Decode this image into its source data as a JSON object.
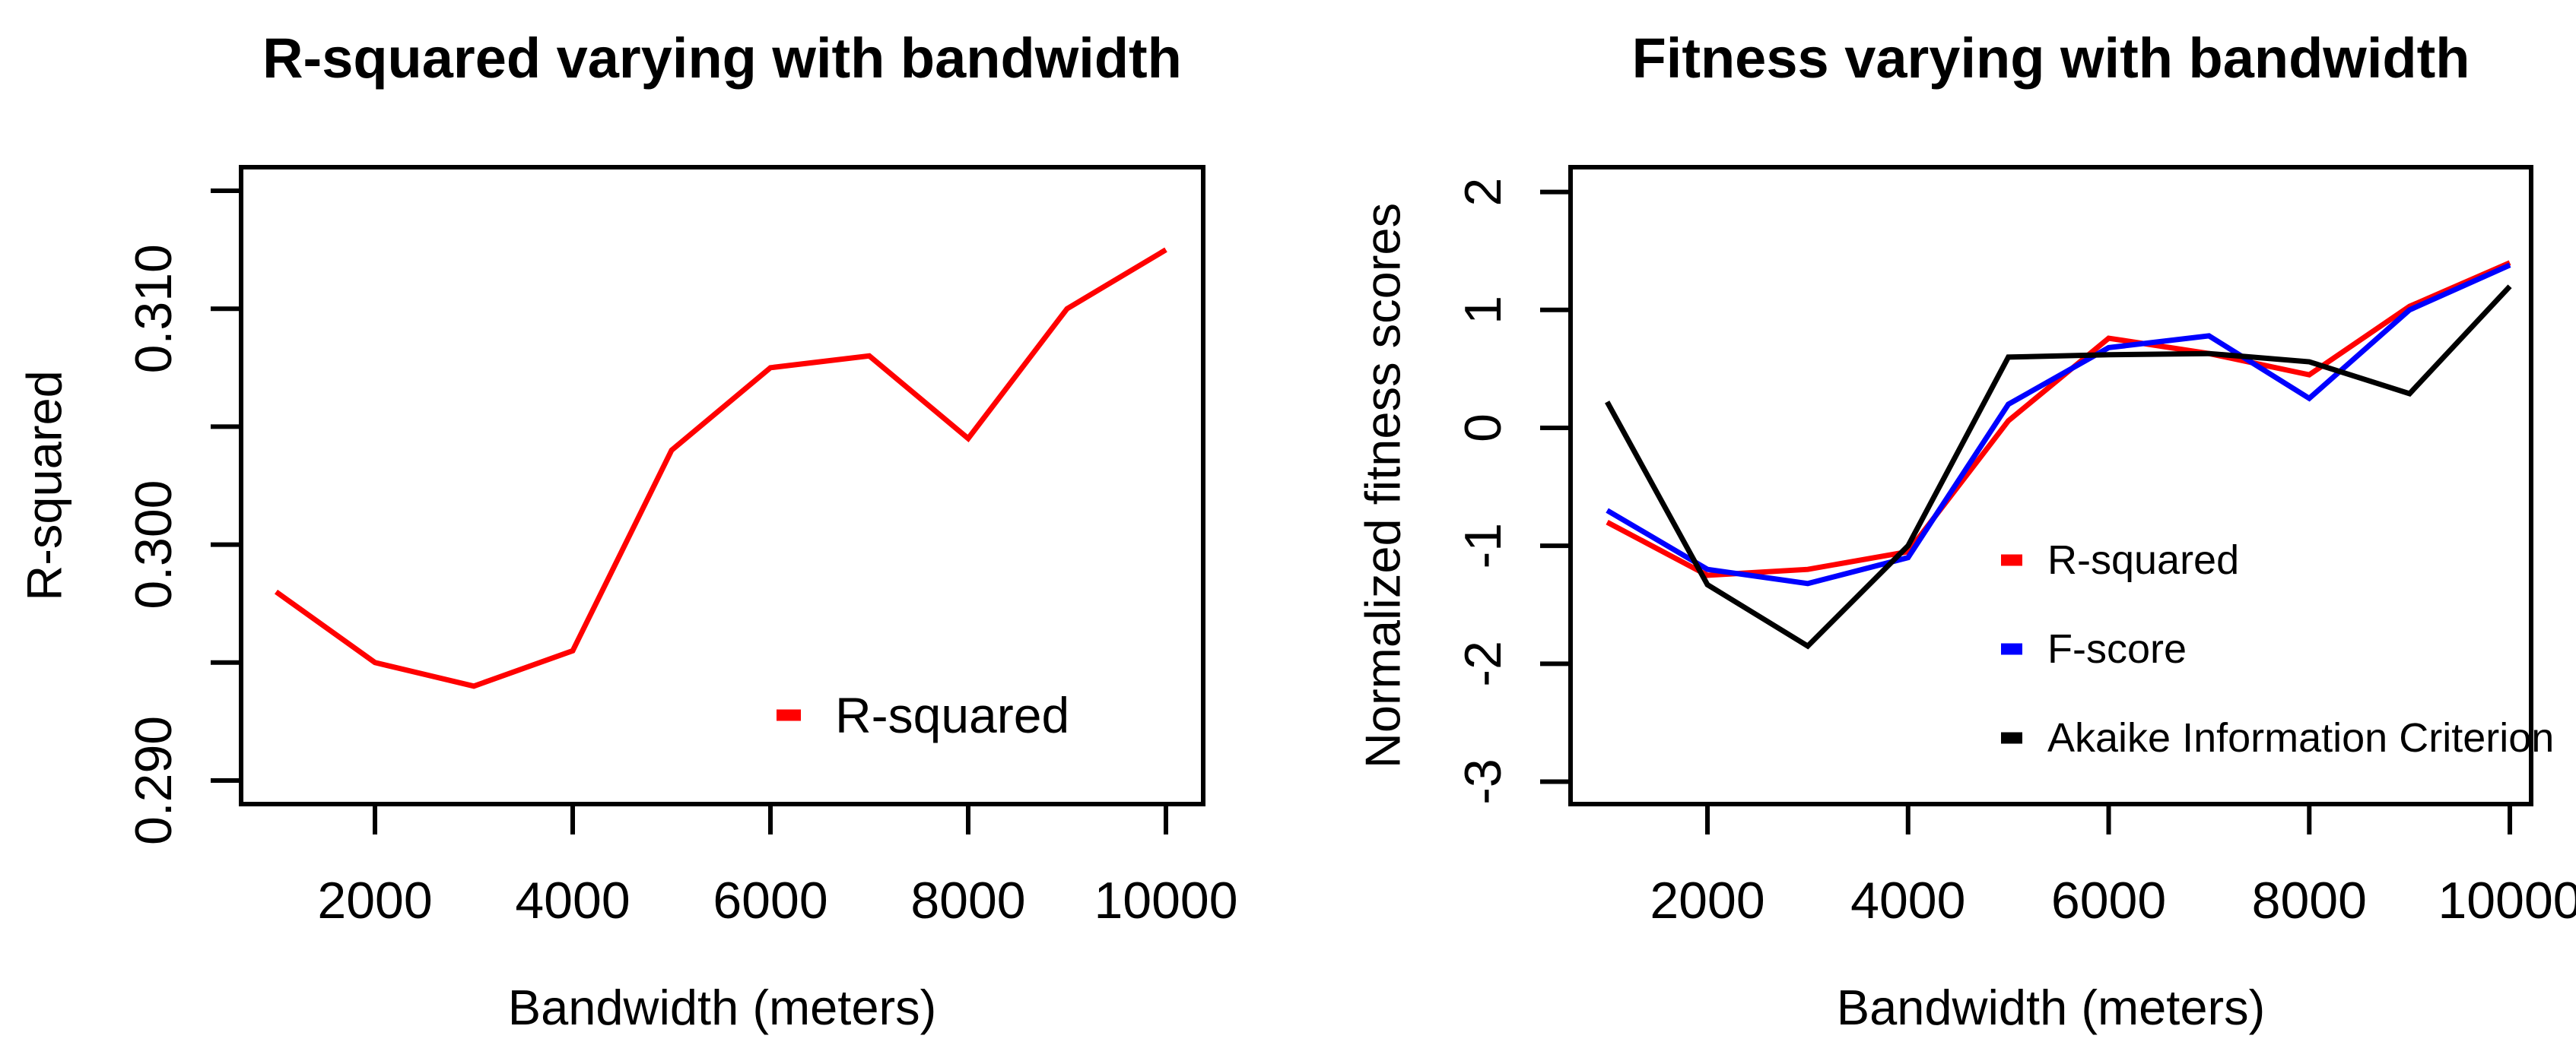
{
  "figure": {
    "background": "#ffffff",
    "text_color": "#000000"
  },
  "chart_data": [
    {
      "type": "line",
      "title": "R-squared varying with bandwidth",
      "xlabel": "Bandwidth (meters)",
      "ylabel": "R-squared",
      "grid": false,
      "x": [
        1000,
        2000,
        3000,
        4000,
        5000,
        6000,
        7000,
        8000,
        9000,
        10000
      ],
      "series": [
        {
          "name": "R-squared",
          "color": "#ff0000",
          "values": [
            0.298,
            0.295,
            0.294,
            0.2955,
            0.304,
            0.3075,
            0.308,
            0.3045,
            0.31,
            0.3125
          ]
        }
      ],
      "xlim": [
        646,
        10377
      ],
      "ylim": [
        0.289,
        0.316
      ],
      "xticks": [
        {
          "v": 2000,
          "label": "2000"
        },
        {
          "v": 4000,
          "label": "4000"
        },
        {
          "v": 6000,
          "label": "6000"
        },
        {
          "v": 8000,
          "label": "8000"
        },
        {
          "v": 10000,
          "label": "10000"
        }
      ],
      "yticks": [
        {
          "v": 0.315,
          "label": ""
        },
        {
          "v": 0.31,
          "label": "0.310"
        },
        {
          "v": 0.305,
          "label": ""
        },
        {
          "v": 0.3,
          "label": "0.300"
        },
        {
          "v": 0.295,
          "label": ""
        },
        {
          "v": 0.29,
          "label": "0.290"
        }
      ],
      "legend": {
        "position": "inside-lower-right",
        "items": [
          {
            "label": "R-squared",
            "color": "#ff0000"
          }
        ]
      }
    },
    {
      "type": "line",
      "title": "Fitness varying with bandwidth",
      "xlabel": "Bandwidth (meters)",
      "ylabel": "Normalized fitness scores",
      "grid": false,
      "x": [
        1000,
        2000,
        3000,
        4000,
        5000,
        6000,
        7000,
        8000,
        9000,
        10000
      ],
      "series": [
        {
          "name": "R-squared",
          "color": "#ff0000",
          "values": [
            -0.8,
            -1.25,
            -1.2,
            -1.05,
            0.06,
            0.76,
            0.63,
            0.45,
            1.03,
            1.4
          ]
        },
        {
          "name": "F-score",
          "color": "#0000ff",
          "values": [
            -0.7,
            -1.2,
            -1.32,
            -1.1,
            0.2,
            0.68,
            0.78,
            0.25,
            1.0,
            1.38
          ]
        },
        {
          "name": "Akaike Information Criterion",
          "color": "#000000",
          "values": [
            0.22,
            -1.33,
            -1.85,
            -1.0,
            0.6,
            0.62,
            0.63,
            0.56,
            0.29,
            1.2
          ]
        }
      ],
      "xlim": [
        635,
        10212
      ],
      "ylim": [
        -3.19,
        2.21
      ],
      "xticks": [
        {
          "v": 2000,
          "label": "2000"
        },
        {
          "v": 4000,
          "label": "4000"
        },
        {
          "v": 6000,
          "label": "6000"
        },
        {
          "v": 8000,
          "label": "8000"
        },
        {
          "v": 10000,
          "label": "10000"
        }
      ],
      "yticks": [
        {
          "v": 2,
          "label": "2"
        },
        {
          "v": 1,
          "label": "1"
        },
        {
          "v": 0,
          "label": "0"
        },
        {
          "v": -1,
          "label": "-1"
        },
        {
          "v": -2,
          "label": "-2"
        },
        {
          "v": -3,
          "label": "-3"
        }
      ],
      "legend": {
        "position": "inside-middle-right",
        "items": [
          {
            "label": "R-squared",
            "color": "#ff0000"
          },
          {
            "label": "F-score",
            "color": "#0000ff"
          },
          {
            "label": "Akaike Information Criterion",
            "color": "#000000"
          }
        ]
      }
    }
  ]
}
